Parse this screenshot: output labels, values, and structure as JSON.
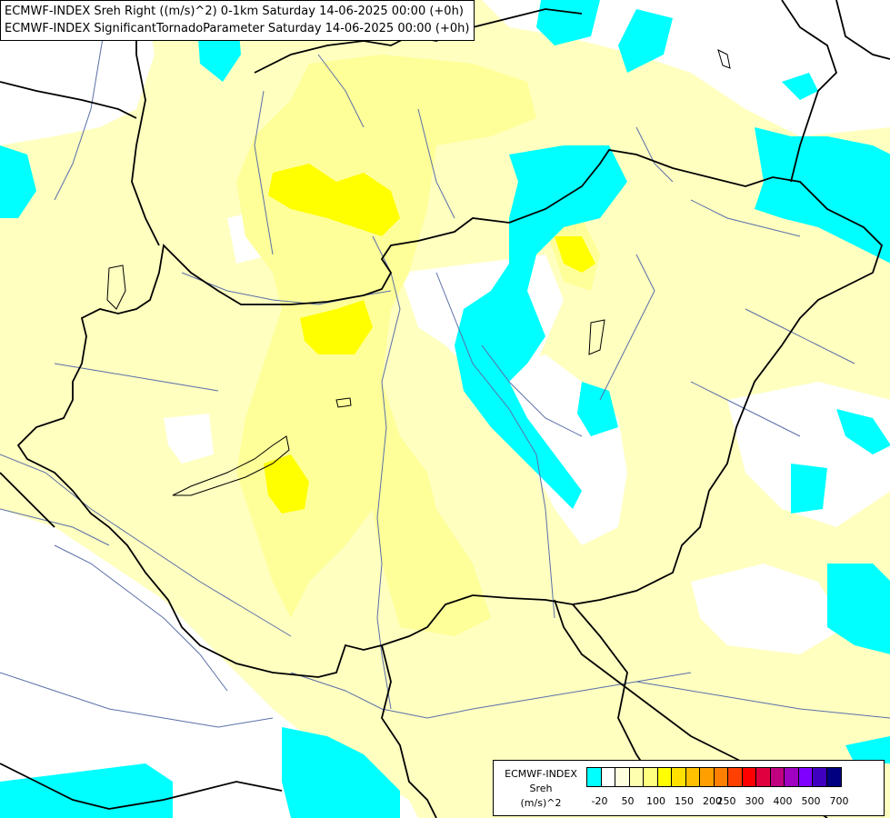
{
  "titles": {
    "line1": "ECMWF-INDEX Sreh Right ((m/s)^2) 0-1km Saturday 14-06-2025 00:00 (+0h)",
    "line2": "ECMWF-INDEX SignificantTornadoParameter Saturday 14-06-2025 00:00 (+0h)"
  },
  "legend": {
    "model": "ECMWF-INDEX",
    "param": "Sreh",
    "unit": "(m/s)^2",
    "colors": [
      "#00ffff",
      "#ffffff",
      "#ffffe0",
      "#ffffb0",
      "#ffff80",
      "#ffff00",
      "#ffe000",
      "#ffc000",
      "#ffa000",
      "#ff8000",
      "#ff4000",
      "#ff0000",
      "#e00040",
      "#c00080",
      "#a000c0",
      "#8000ff",
      "#4000c0",
      "#000080"
    ],
    "ticks": [
      "-20",
      "50",
      "100",
      "150",
      "200",
      "250",
      "300",
      "400",
      "500",
      "700"
    ]
  },
  "colors": {
    "cyan": "#00ffff",
    "pale_yellow": "#ffffc0",
    "light_yellow": "#ffff99",
    "yellow": "#ffff00",
    "white": "#ffffff",
    "border": "#000000",
    "river": "#5a6fa8"
  }
}
